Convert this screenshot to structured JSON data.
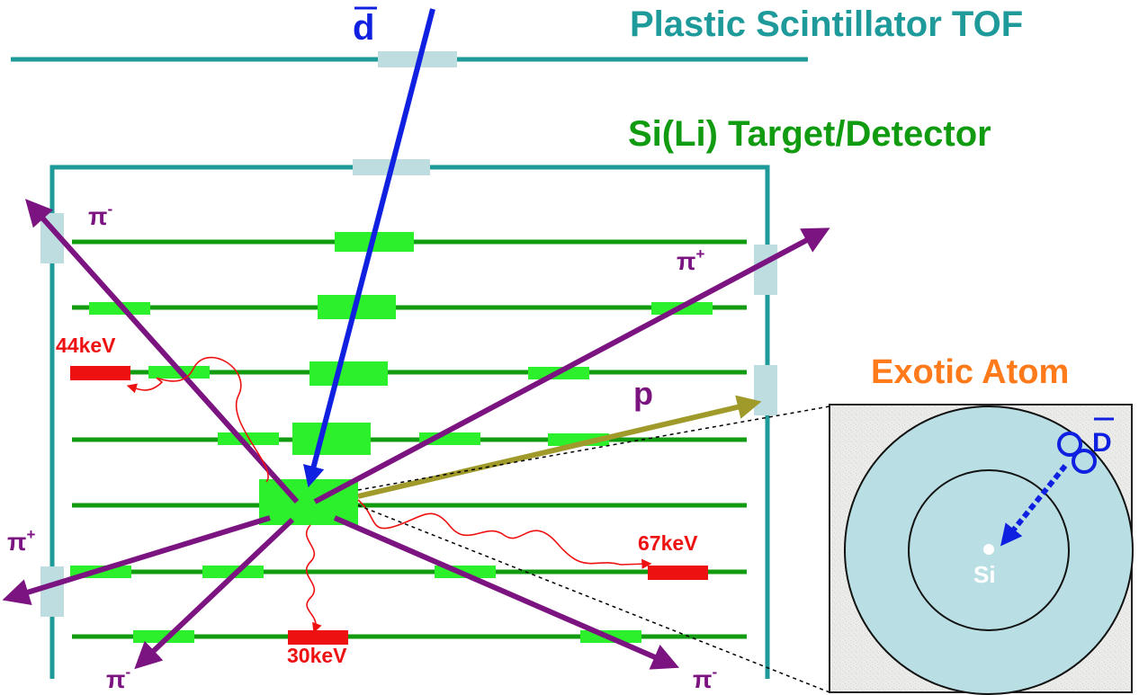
{
  "labels": {
    "tof": "Plastic Scintillator TOF",
    "target": "Si(Li) Target/Detector",
    "exotic_atom": "Exotic Atom",
    "dbar": "d",
    "dbar_atom": "D",
    "proton": "p",
    "si": "Si",
    "pi_minus_top_left": "π",
    "pi_plus_right": "π",
    "pi_plus_left": "π",
    "pi_minus_bottom_left": "π",
    "pi_minus_bottom_right": "π",
    "sign_minus": "-",
    "sign_plus": "+"
  },
  "xrays": {
    "kev44": "44keV",
    "kev67": "67keV",
    "kev30": "30keV"
  },
  "colors": {
    "teal": "#1e9a9a",
    "green": "#119b11",
    "blue": "#1020e0",
    "purple": "#7b1380",
    "red": "#ee1111",
    "orange": "#ff7a1a",
    "olive": "#a09a2a",
    "light_green": "#2cf02c",
    "light_blue": "#bddde1",
    "atom_fill": "#b9dfe4"
  }
}
